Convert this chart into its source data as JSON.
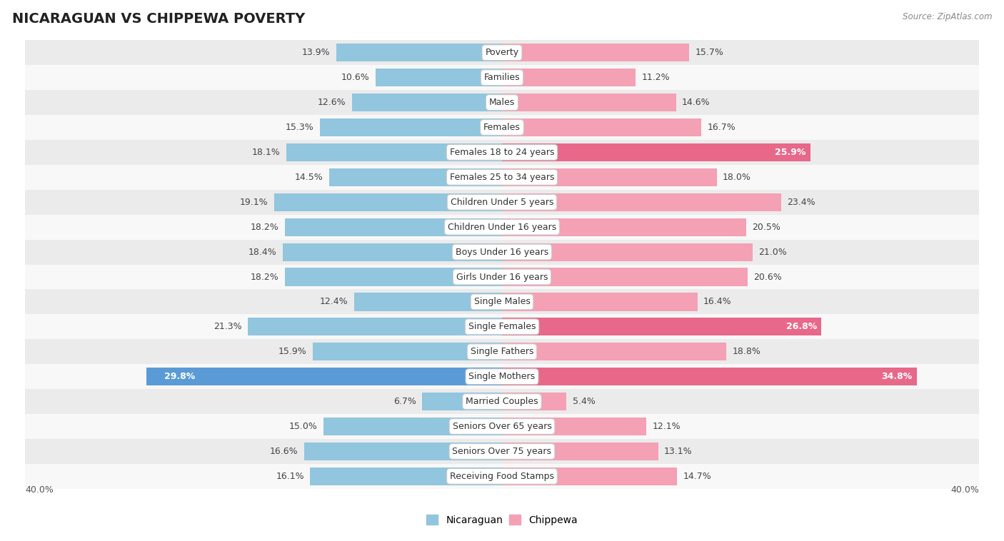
{
  "title": "NICARAGUAN VS CHIPPEWA POVERTY",
  "source": "Source: ZipAtlas.com",
  "categories": [
    "Poverty",
    "Families",
    "Males",
    "Females",
    "Females 18 to 24 years",
    "Females 25 to 34 years",
    "Children Under 5 years",
    "Children Under 16 years",
    "Boys Under 16 years",
    "Girls Under 16 years",
    "Single Males",
    "Single Females",
    "Single Fathers",
    "Single Mothers",
    "Married Couples",
    "Seniors Over 65 years",
    "Seniors Over 75 years",
    "Receiving Food Stamps"
  ],
  "nicaraguan": [
    13.9,
    10.6,
    12.6,
    15.3,
    18.1,
    14.5,
    19.1,
    18.2,
    18.4,
    18.2,
    12.4,
    21.3,
    15.9,
    29.8,
    6.7,
    15.0,
    16.6,
    16.1
  ],
  "chippewa": [
    15.7,
    11.2,
    14.6,
    16.7,
    25.9,
    18.0,
    23.4,
    20.5,
    21.0,
    20.6,
    16.4,
    26.8,
    18.8,
    34.8,
    5.4,
    12.1,
    13.1,
    14.7
  ],
  "nic_color": "#92c5de",
  "chip_color": "#f4a0b5",
  "nic_highlight_color": "#5b9bd5",
  "chip_highlight_color": "#e8688a",
  "nic_highlight_indices": [
    13
  ],
  "chip_highlight_indices": [
    4,
    11,
    13
  ],
  "row_color_even": "#ebebeb",
  "row_color_odd": "#f8f8f8",
  "bar_height": 0.72,
  "xlim": 40.0,
  "title_fontsize": 14,
  "cat_fontsize": 9,
  "val_fontsize": 9,
  "legend_fontsize": 10,
  "fig_width": 14.06,
  "fig_height": 7.58
}
